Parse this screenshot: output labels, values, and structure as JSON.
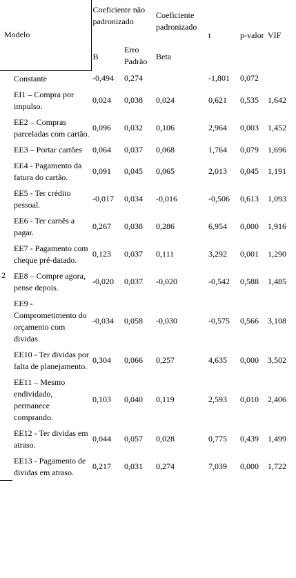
{
  "header": {
    "model": "Modelo",
    "unstandardized": "Coeficiente não padronizado",
    "standardized": "Coeficiente padronizado",
    "t": "t",
    "p": "p-valor",
    "vif": "VIF",
    "b": "B",
    "se": "Erro Padrão",
    "beta": "Beta"
  },
  "model_number": "2",
  "rows": [
    [
      "Constante",
      "-0,494",
      "0,274",
      "",
      "-1,801",
      "0,072",
      ""
    ],
    [
      "EI1 – Compra por impulso.",
      "0,024",
      "0,038",
      "0,024",
      "0,621",
      "0,535",
      "1,642"
    ],
    [
      "EE2 – Compras parceladas com cartão.",
      "0,096",
      "0,032",
      "0,106",
      "2,964",
      "0,003",
      "1,452"
    ],
    [
      "EE3 – Portar cartões",
      "0,064",
      "0,037",
      "0,068",
      "1,764",
      "0,079",
      "1,696"
    ],
    [
      "EE4 - Pagamento da fatura do cartão.",
      "0,091",
      "0,045",
      "0,065",
      "2,013",
      "0,045",
      "1,191"
    ],
    [
      "EE5 - Ter crédito pessoal.",
      "-0,017",
      "0,034",
      "-0,016",
      "-0,506",
      "0,613",
      "1,093"
    ],
    [
      "EE6 - Ter carnês a pagar.",
      "0,267",
      "0,038",
      "0,286",
      "6,954",
      "0,000",
      "1,916"
    ],
    [
      "EE7 - Pagamento com cheque pré-datado.",
      "0,123",
      "0,037",
      "0,111",
      "3,292",
      "0,001",
      "1,290"
    ],
    [
      "EE8 – Compre agora, pense depois.",
      "-0,020",
      "0,037",
      "-0,020",
      "-0,542",
      "0,588",
      "1,485"
    ],
    [
      "EE9 - Comprometimento do orçamento com dividas.",
      "-0,034",
      "0,058",
      "-0,030",
      "-0,575",
      "0,566",
      "3,108"
    ],
    [
      "EE10 - Ter dividas por falta de planejamento.",
      "0,304",
      "0,066",
      "0,257",
      "4,635",
      "0,000",
      "3,502"
    ],
    [
      "EE11 – Mesmo endividado, permanece comprando.",
      "0,103",
      "0,040",
      "0,119",
      "2,593",
      "0,010",
      "2,406"
    ],
    [
      "EE12 - Ter dividas em atraso.",
      "0,044",
      "0,057",
      "0,028",
      "0,775",
      "0,439",
      "1,499"
    ],
    [
      "EE13 - Pagamento de dividas em atraso.",
      "0,217",
      "0,031",
      "0,274",
      "7,039",
      "0,000",
      "1,722"
    ]
  ]
}
